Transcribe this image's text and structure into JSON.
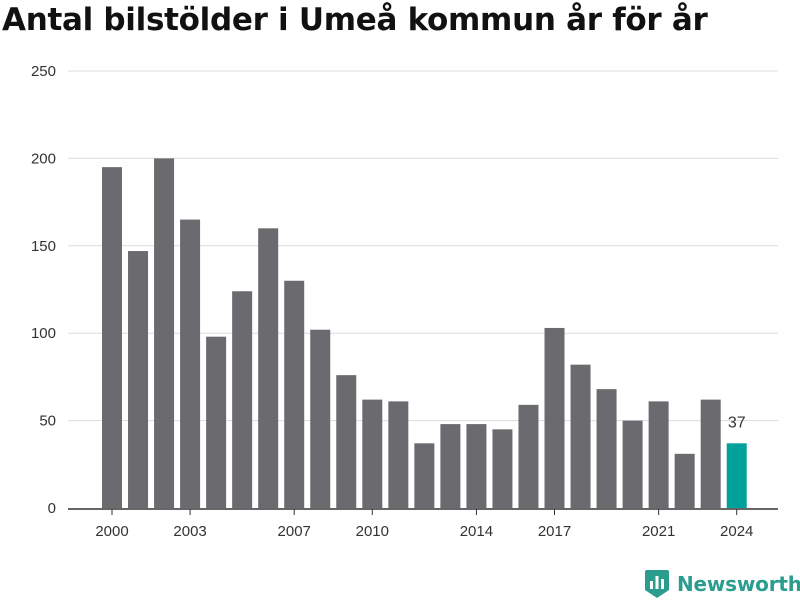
{
  "chart_data": {
    "type": "bar",
    "title": "Antal bilstölder i Umeå kommun år för år",
    "xlabel": "",
    "ylabel": "",
    "ylim": [
      0,
      250
    ],
    "yticks": [
      0,
      50,
      100,
      150,
      200,
      250
    ],
    "xtick_labels": [
      "2000",
      "2003",
      "2007",
      "2010",
      "2014",
      "2017",
      "2021",
      "2024"
    ],
    "categories": [
      "2000",
      "2001",
      "2002",
      "2003",
      "2004",
      "2005",
      "2006",
      "2007",
      "2008",
      "2009",
      "2010",
      "2011",
      "2012",
      "2013",
      "2014",
      "2015",
      "2016",
      "2017",
      "2018",
      "2019",
      "2020",
      "2021",
      "2022",
      "2023",
      "2024"
    ],
    "values": [
      195,
      147,
      200,
      165,
      98,
      124,
      160,
      130,
      102,
      76,
      62,
      61,
      37,
      48,
      48,
      45,
      59,
      103,
      82,
      68,
      50,
      61,
      31,
      62,
      37
    ],
    "highlight": {
      "category": "2024",
      "label": "37"
    },
    "grid": true,
    "colors": {
      "bar": "#6b6b6f",
      "highlight": "#00a19a",
      "grid": "#dcdcdc",
      "axis": "#333333",
      "text": "#333333"
    }
  },
  "branding": {
    "logo_text": "Newsworthy",
    "logo_color": "#2a9d8f",
    "icon": "newsworthy-chart-icon"
  }
}
